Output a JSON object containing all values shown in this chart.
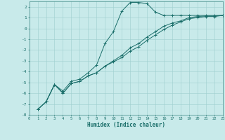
{
  "xlabel": "Humidex (Indice chaleur)",
  "bg_color": "#c8eaea",
  "grid_color": "#9ecece",
  "line_color": "#1a6e6a",
  "xlim": [
    0,
    23
  ],
  "ylim": [
    -8,
    2.5
  ],
  "yticks": [
    -8,
    -7,
    -6,
    -5,
    -4,
    -3,
    -2,
    -1,
    0,
    1,
    2
  ],
  "xticks": [
    0,
    1,
    2,
    3,
    4,
    5,
    6,
    7,
    8,
    9,
    10,
    11,
    12,
    13,
    14,
    15,
    16,
    17,
    18,
    19,
    20,
    21,
    22,
    23
  ],
  "line1_x": [
    1,
    2,
    3,
    4,
    5,
    6,
    7,
    8,
    9,
    10,
    11,
    12,
    13,
    14,
    15,
    16,
    17,
    18,
    19,
    20,
    21,
    22,
    23
  ],
  "line1_y": [
    -7.5,
    -6.8,
    -5.2,
    -5.8,
    -4.9,
    -4.7,
    -4.1,
    -3.4,
    -1.4,
    -0.3,
    1.6,
    2.4,
    2.4,
    2.3,
    1.5,
    1.2,
    1.2,
    1.2,
    1.2,
    1.2,
    1.2,
    1.2,
    1.2
  ],
  "line2_x": [
    1,
    2,
    3,
    4,
    5,
    6,
    7,
    8,
    9,
    10,
    11,
    12,
    13,
    14,
    15,
    16,
    17,
    18,
    19,
    20,
    21,
    22,
    23
  ],
  "line2_y": [
    -7.5,
    -6.8,
    -5.2,
    -6.0,
    -5.1,
    -4.9,
    -4.4,
    -4.1,
    -3.5,
    -3.1,
    -2.7,
    -2.1,
    -1.7,
    -1.1,
    -0.6,
    -0.1,
    0.3,
    0.6,
    0.9,
    1.0,
    1.1,
    1.1,
    1.2
  ],
  "line3_x": [
    1,
    2,
    3,
    4,
    5,
    6,
    7,
    8,
    9,
    10,
    11,
    12,
    13,
    14,
    15,
    16,
    17,
    18,
    19,
    20,
    21,
    22,
    23
  ],
  "line3_y": [
    -7.5,
    -6.8,
    -5.2,
    -6.0,
    -5.1,
    -4.9,
    -4.4,
    -4.1,
    -3.5,
    -3.0,
    -2.5,
    -1.8,
    -1.4,
    -0.8,
    -0.3,
    0.2,
    0.5,
    0.7,
    1.0,
    1.1,
    1.15,
    1.15,
    1.2
  ]
}
